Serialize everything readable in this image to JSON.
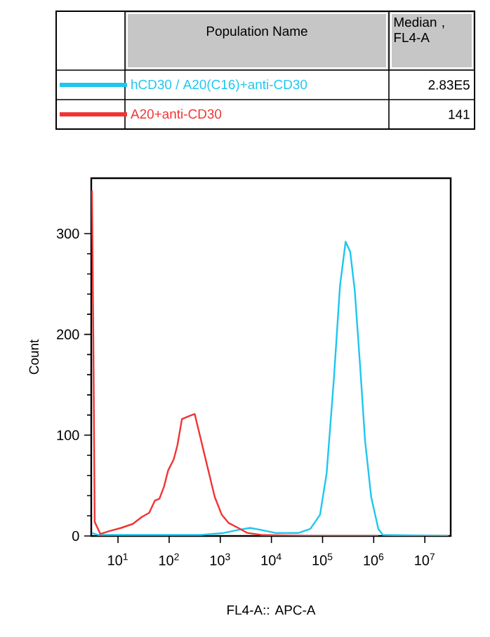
{
  "chart_data": {
    "type": "line",
    "xlabel": "FL4-A:: APC-A",
    "ylabel": "Count",
    "legend_title": "Population Name",
    "legend": "top",
    "log": "x",
    "xlim": [
      3,
      32000000
    ],
    "ylim": [
      0,
      355
    ],
    "yticks": [
      0,
      100,
      200,
      300
    ],
    "xticks": [
      {
        "value": 10,
        "label": "10$^{1}$"
      },
      {
        "value": 100,
        "label": "10$^{2}$"
      },
      {
        "value": 1000,
        "label": "10$^{3}$"
      },
      {
        "value": 10000,
        "label": "10$^{4}$"
      },
      {
        "value": 100000,
        "label": "10$^{5}$"
      },
      {
        "value": 1000000,
        "label": "10$^{6}$"
      },
      {
        "value": 10000000,
        "label": "10$^{7}$"
      }
    ],
    "annotations": [
      "Median , FL4-A",
      "2.83E5",
      "141"
    ],
    "series": [
      {
        "name": "hCD30 / A20(C16)+anti-CD30",
        "color": "#1ec6f0",
        "x": [
          3.1,
          4.1,
          417,
          1170,
          2240,
          3800,
          6310,
          12000,
          33900,
          57500,
          89100,
          120000,
          166000,
          219000,
          282000,
          347000,
          427000,
          550000,
          676000,
          891000,
          1230000,
          1510000,
          28800000
        ],
        "values": [
          3,
          1,
          1,
          3,
          6,
          8,
          6,
          3,
          3,
          7,
          21,
          62,
          155,
          248,
          292,
          282,
          243,
          164,
          95,
          39,
          7,
          1,
          0
        ]
      },
      {
        "name": "A20+anti-CD30",
        "color": "#f03434",
        "x": [
          3.1,
          3.3,
          3.5,
          4.5,
          6.9,
          11.5,
          19.5,
          29.5,
          40.7,
          52.5,
          64.6,
          79.4,
          95.5,
          123,
          145,
          178,
          245,
          316,
          398,
          490,
          631,
          776,
          1070,
          1450,
          2240,
          3390,
          6310,
          52500,
          1230000
        ],
        "values": [
          343,
          194,
          14,
          2,
          5,
          8,
          12,
          19,
          23,
          35,
          37,
          49,
          65,
          76,
          90,
          116,
          119,
          121,
          100,
          81,
          58,
          39,
          21,
          13,
          8,
          3,
          1,
          0,
          0
        ]
      }
    ]
  }
}
